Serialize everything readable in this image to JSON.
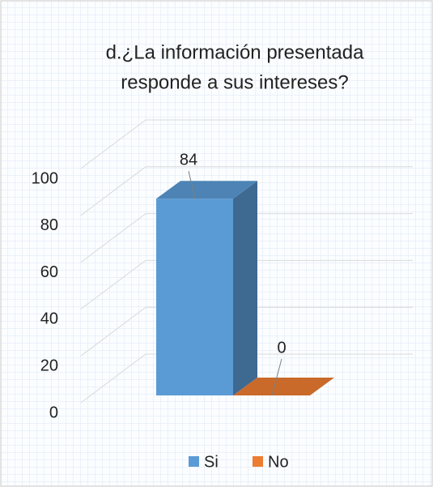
{
  "chart_data": {
    "type": "bar3d",
    "title": "d.¿La información presentada responde a sus intereses?",
    "categories": [
      "Si",
      "No"
    ],
    "values": [
      84,
      0
    ],
    "colors": [
      "#5b9bd5",
      "#ed7d31"
    ],
    "ylim": [
      0,
      100
    ],
    "yticks": [
      0,
      20,
      40,
      60,
      80,
      100
    ],
    "grid": true,
    "legend": "bottom"
  }
}
